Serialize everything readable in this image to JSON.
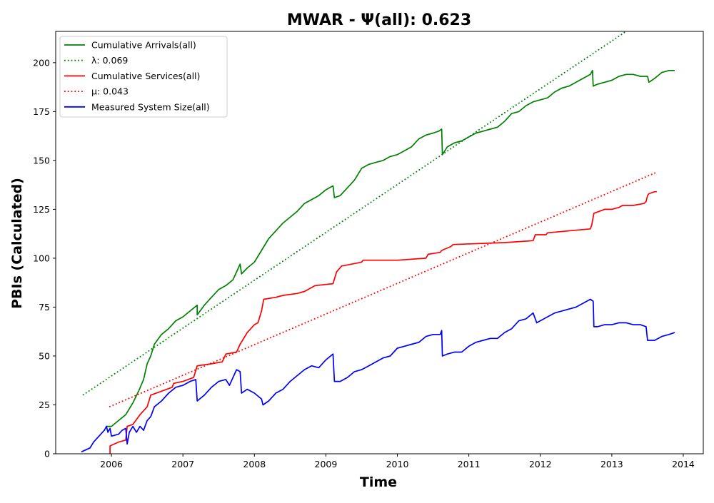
{
  "chart_data": {
    "type": "line",
    "title": "MWAR -  Ψ(all): 0.623",
    "xlabel": "Time",
    "ylabel": "PBIs (Calculated)",
    "xlim": [
      2005.22,
      2014.28
    ],
    "ylim": [
      0,
      216
    ],
    "x_ticks": [
      "2006",
      "2007",
      "2008",
      "2009",
      "2010",
      "2011",
      "2012",
      "2013",
      "2014"
    ],
    "y_ticks": [
      "0",
      "25",
      "50",
      "75",
      "100",
      "125",
      "150",
      "175",
      "200"
    ],
    "grid": false,
    "legend_position": "top-left",
    "series": [
      {
        "name": "Cumulative Arrivals(all)",
        "color": "#008000",
        "style": "solid",
        "points": [
          [
            2005.92,
            14
          ],
          [
            2006.0,
            14
          ],
          [
            2006.1,
            17
          ],
          [
            2006.2,
            20
          ],
          [
            2006.3,
            26
          ],
          [
            2006.38,
            32
          ],
          [
            2006.45,
            38
          ],
          [
            2006.5,
            46
          ],
          [
            2006.55,
            50
          ],
          [
            2006.6,
            56
          ],
          [
            2006.7,
            61
          ],
          [
            2006.8,
            64
          ],
          [
            2006.9,
            68
          ],
          [
            2007.0,
            70
          ],
          [
            2007.1,
            73
          ],
          [
            2007.2,
            76
          ],
          [
            2007.2,
            71
          ],
          [
            2007.3,
            76
          ],
          [
            2007.4,
            80
          ],
          [
            2007.5,
            84
          ],
          [
            2007.6,
            86
          ],
          [
            2007.7,
            89
          ],
          [
            2007.75,
            93
          ],
          [
            2007.8,
            97
          ],
          [
            2007.82,
            92
          ],
          [
            2007.9,
            95
          ],
          [
            2008.0,
            98
          ],
          [
            2008.1,
            104
          ],
          [
            2008.2,
            110
          ],
          [
            2008.3,
            114
          ],
          [
            2008.4,
            118
          ],
          [
            2008.5,
            121
          ],
          [
            2008.6,
            124
          ],
          [
            2008.7,
            128
          ],
          [
            2008.8,
            130
          ],
          [
            2008.9,
            132
          ],
          [
            2009.0,
            135
          ],
          [
            2009.1,
            137
          ],
          [
            2009.12,
            131
          ],
          [
            2009.2,
            132
          ],
          [
            2009.3,
            136
          ],
          [
            2009.4,
            140
          ],
          [
            2009.5,
            146
          ],
          [
            2009.6,
            148
          ],
          [
            2009.7,
            149
          ],
          [
            2009.8,
            150
          ],
          [
            2009.9,
            152
          ],
          [
            2010.0,
            153
          ],
          [
            2010.1,
            155
          ],
          [
            2010.2,
            157
          ],
          [
            2010.3,
            161
          ],
          [
            2010.4,
            163
          ],
          [
            2010.5,
            164
          ],
          [
            2010.58,
            165
          ],
          [
            2010.62,
            166
          ],
          [
            2010.63,
            153
          ],
          [
            2010.7,
            157
          ],
          [
            2010.8,
            159
          ],
          [
            2010.9,
            160
          ],
          [
            2011.0,
            162
          ],
          [
            2011.1,
            164
          ],
          [
            2011.2,
            165
          ],
          [
            2011.3,
            166
          ],
          [
            2011.4,
            167
          ],
          [
            2011.5,
            170
          ],
          [
            2011.6,
            174
          ],
          [
            2011.7,
            175
          ],
          [
            2011.8,
            178
          ],
          [
            2011.9,
            180
          ],
          [
            2012.0,
            181
          ],
          [
            2012.1,
            182
          ],
          [
            2012.2,
            185
          ],
          [
            2012.3,
            187
          ],
          [
            2012.4,
            188
          ],
          [
            2012.5,
            190
          ],
          [
            2012.6,
            192
          ],
          [
            2012.7,
            194
          ],
          [
            2012.73,
            196
          ],
          [
            2012.74,
            188
          ],
          [
            2012.8,
            189
          ],
          [
            2012.9,
            190
          ],
          [
            2013.0,
            191
          ],
          [
            2013.1,
            193
          ],
          [
            2013.2,
            194
          ],
          [
            2013.3,
            194
          ],
          [
            2013.4,
            193
          ],
          [
            2013.5,
            193
          ],
          [
            2013.52,
            190
          ],
          [
            2013.6,
            192
          ],
          [
            2013.7,
            195
          ],
          [
            2013.8,
            196
          ],
          [
            2013.88,
            196
          ]
        ]
      },
      {
        "name": "λ: 0.069",
        "color": "#008000",
        "style": "dotted",
        "points": [
          [
            2005.6,
            30
          ],
          [
            2013.2,
            216
          ]
        ]
      },
      {
        "name": "Cumulative Services(all)",
        "color": "#ff0000",
        "style": "solid",
        "points": [
          [
            2005.98,
            0
          ],
          [
            2005.98,
            4
          ],
          [
            2006.1,
            6
          ],
          [
            2006.2,
            7
          ],
          [
            2006.22,
            14
          ],
          [
            2006.3,
            15
          ],
          [
            2006.4,
            20
          ],
          [
            2006.5,
            24
          ],
          [
            2006.55,
            30
          ],
          [
            2006.7,
            32
          ],
          [
            2006.85,
            34
          ],
          [
            2006.87,
            36
          ],
          [
            2007.0,
            37
          ],
          [
            2007.15,
            39
          ],
          [
            2007.2,
            45
          ],
          [
            2007.4,
            46
          ],
          [
            2007.55,
            47
          ],
          [
            2007.6,
            51
          ],
          [
            2007.75,
            52
          ],
          [
            2007.8,
            56
          ],
          [
            2007.9,
            62
          ],
          [
            2008.0,
            66
          ],
          [
            2008.05,
            67
          ],
          [
            2008.1,
            73
          ],
          [
            2008.13,
            79
          ],
          [
            2008.3,
            80
          ],
          [
            2008.4,
            81
          ],
          [
            2008.6,
            82
          ],
          [
            2008.7,
            83
          ],
          [
            2008.85,
            86
          ],
          [
            2009.1,
            87
          ],
          [
            2009.15,
            93
          ],
          [
            2009.22,
            96
          ],
          [
            2009.5,
            98
          ],
          [
            2009.52,
            99
          ],
          [
            2009.8,
            99
          ],
          [
            2010.0,
            99
          ],
          [
            2010.4,
            100
          ],
          [
            2010.43,
            102
          ],
          [
            2010.6,
            103
          ],
          [
            2010.62,
            104
          ],
          [
            2010.75,
            106
          ],
          [
            2010.78,
            107
          ],
          [
            2011.5,
            108
          ],
          [
            2011.9,
            109
          ],
          [
            2011.93,
            112
          ],
          [
            2012.08,
            112
          ],
          [
            2012.1,
            113
          ],
          [
            2012.7,
            115
          ],
          [
            2012.72,
            117
          ],
          [
            2012.75,
            123
          ],
          [
            2012.9,
            125
          ],
          [
            2013.0,
            125
          ],
          [
            2013.1,
            126
          ],
          [
            2013.15,
            127
          ],
          [
            2013.3,
            127
          ],
          [
            2013.45,
            128
          ],
          [
            2013.48,
            129
          ],
          [
            2013.5,
            132
          ],
          [
            2013.52,
            133
          ],
          [
            2013.6,
            134
          ],
          [
            2013.63,
            134
          ]
        ]
      },
      {
        "name": "μ: 0.043",
        "color": "#ff0000",
        "style": "dotted",
        "points": [
          [
            2005.97,
            24
          ],
          [
            2013.63,
            144
          ]
        ]
      },
      {
        "name": "Measured System Size(all)",
        "color": "#0000ff",
        "style": "solid",
        "points": [
          [
            2005.58,
            1
          ],
          [
            2005.7,
            3
          ],
          [
            2005.75,
            6
          ],
          [
            2005.8,
            8
          ],
          [
            2005.85,
            10
          ],
          [
            2005.9,
            12
          ],
          [
            2005.93,
            14
          ],
          [
            2005.95,
            11
          ],
          [
            2005.98,
            13
          ],
          [
            2006.0,
            9
          ],
          [
            2006.1,
            10
          ],
          [
            2006.15,
            12
          ],
          [
            2006.2,
            13
          ],
          [
            2006.22,
            5
          ],
          [
            2006.25,
            11
          ],
          [
            2006.3,
            14
          ],
          [
            2006.35,
            11
          ],
          [
            2006.4,
            14
          ],
          [
            2006.45,
            12
          ],
          [
            2006.5,
            17
          ],
          [
            2006.55,
            19
          ],
          [
            2006.6,
            24
          ],
          [
            2006.7,
            27
          ],
          [
            2006.8,
            31
          ],
          [
            2006.9,
            34
          ],
          [
            2007.0,
            35
          ],
          [
            2007.1,
            37
          ],
          [
            2007.18,
            38
          ],
          [
            2007.2,
            27
          ],
          [
            2007.3,
            30
          ],
          [
            2007.4,
            34
          ],
          [
            2007.5,
            37
          ],
          [
            2007.6,
            38
          ],
          [
            2007.65,
            35
          ],
          [
            2007.75,
            43
          ],
          [
            2007.8,
            42
          ],
          [
            2007.82,
            31
          ],
          [
            2007.9,
            33
          ],
          [
            2008.0,
            31
          ],
          [
            2008.1,
            28
          ],
          [
            2008.12,
            25
          ],
          [
            2008.2,
            27
          ],
          [
            2008.3,
            31
          ],
          [
            2008.4,
            33
          ],
          [
            2008.5,
            37
          ],
          [
            2008.6,
            40
          ],
          [
            2008.7,
            43
          ],
          [
            2008.8,
            45
          ],
          [
            2008.9,
            44
          ],
          [
            2009.0,
            48
          ],
          [
            2009.1,
            51
          ],
          [
            2009.12,
            37
          ],
          [
            2009.2,
            37
          ],
          [
            2009.3,
            39
          ],
          [
            2009.4,
            42
          ],
          [
            2009.5,
            43
          ],
          [
            2009.6,
            45
          ],
          [
            2009.7,
            47
          ],
          [
            2009.8,
            49
          ],
          [
            2009.9,
            50
          ],
          [
            2010.0,
            54
          ],
          [
            2010.1,
            55
          ],
          [
            2010.2,
            56
          ],
          [
            2010.3,
            57
          ],
          [
            2010.4,
            60
          ],
          [
            2010.5,
            61
          ],
          [
            2010.6,
            61
          ],
          [
            2010.62,
            63
          ],
          [
            2010.63,
            50
          ],
          [
            2010.7,
            51
          ],
          [
            2010.8,
            52
          ],
          [
            2010.9,
            52
          ],
          [
            2011.0,
            55
          ],
          [
            2011.1,
            57
          ],
          [
            2011.2,
            58
          ],
          [
            2011.3,
            59
          ],
          [
            2011.4,
            59
          ],
          [
            2011.5,
            62
          ],
          [
            2011.6,
            64
          ],
          [
            2011.7,
            68
          ],
          [
            2011.8,
            69
          ],
          [
            2011.9,
            72
          ],
          [
            2011.95,
            67
          ],
          [
            2012.0,
            68
          ],
          [
            2012.1,
            70
          ],
          [
            2012.2,
            72
          ],
          [
            2012.3,
            73
          ],
          [
            2012.4,
            74
          ],
          [
            2012.5,
            75
          ],
          [
            2012.6,
            77
          ],
          [
            2012.7,
            79
          ],
          [
            2012.74,
            78
          ],
          [
            2012.75,
            65
          ],
          [
            2012.8,
            65
          ],
          [
            2012.9,
            66
          ],
          [
            2013.0,
            66
          ],
          [
            2013.1,
            67
          ],
          [
            2013.2,
            67
          ],
          [
            2013.3,
            66
          ],
          [
            2013.4,
            66
          ],
          [
            2013.48,
            65
          ],
          [
            2013.5,
            58
          ],
          [
            2013.6,
            58
          ],
          [
            2013.7,
            60
          ],
          [
            2013.8,
            61
          ],
          [
            2013.88,
            62
          ]
        ]
      }
    ]
  }
}
